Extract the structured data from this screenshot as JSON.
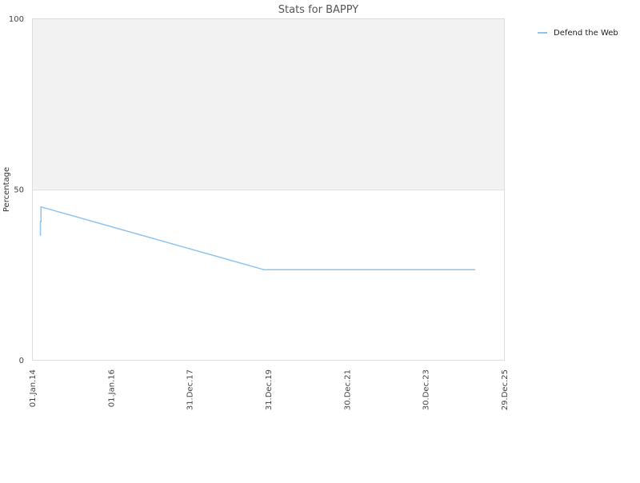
{
  "chart_data": {
    "type": "line",
    "title": "Stats for BAPPY",
    "xlabel": "",
    "ylabel": "Percentage",
    "ylim": [
      0,
      100
    ],
    "y_ticks": [
      "0",
      "50",
      "100"
    ],
    "x_ticks": [
      "01.Jan.14",
      "01.Jan.16",
      "31.Dec.17",
      "31.Dec.19",
      "30.Dec.21",
      "30.Dec.23",
      "29.Dec.25"
    ],
    "xlim": [
      "2014-01-01",
      "2025-12-29"
    ],
    "legend_position": "top-right",
    "grid": false,
    "shaded_band": {
      "from": 50,
      "to": 100,
      "color": "#f2f2f2"
    },
    "series": [
      {
        "name": "Defend the Web",
        "color": "#90c4ec",
        "points": [
          {
            "x": "2014-03-20",
            "y": 36.5
          },
          {
            "x": "2014-03-20",
            "y": 40.5
          },
          {
            "x": "2014-03-25",
            "y": 40.5
          },
          {
            "x": "2014-03-25",
            "y": 44.8
          },
          {
            "x": "2019-11-25",
            "y": 26.4
          },
          {
            "x": "2025-04-01",
            "y": 26.4
          }
        ]
      }
    ]
  }
}
